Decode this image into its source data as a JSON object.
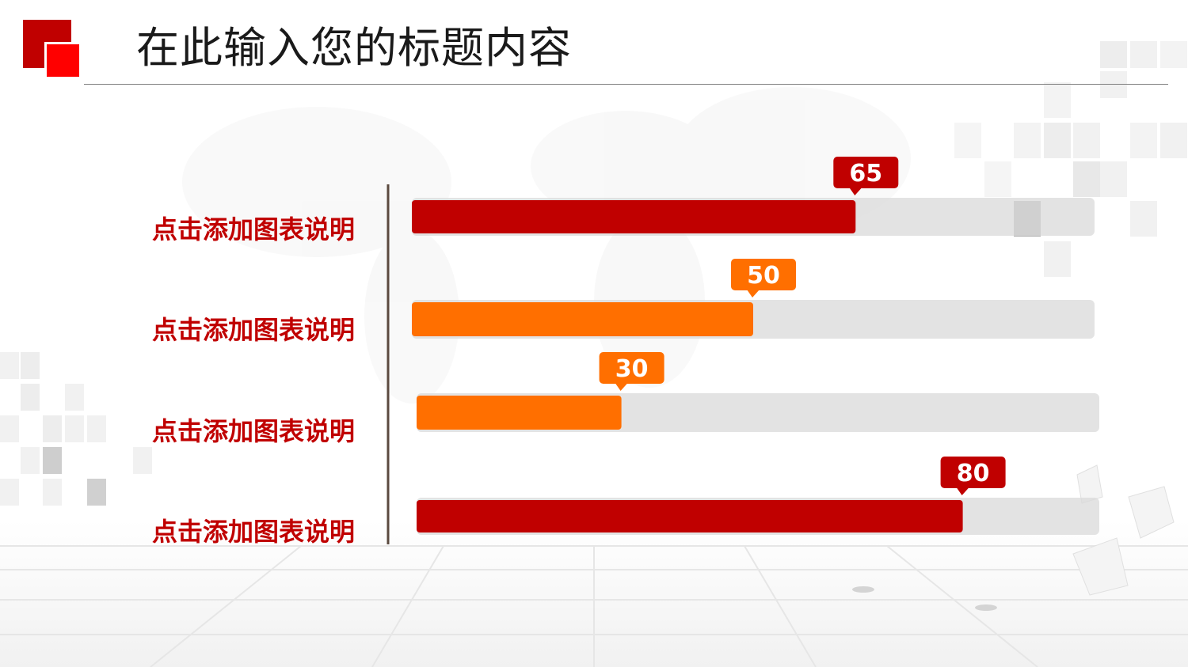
{
  "slide": {
    "title": "在此输入您的标题内容"
  },
  "colors": {
    "red": "#c00000",
    "orange": "#ff6f00",
    "track": "#d9d9d9",
    "label": "#c00000",
    "axis": "#5b4a3f"
  },
  "chart_data": {
    "type": "bar",
    "orientation": "horizontal",
    "categories": [
      "点击添加图表说明",
      "点击添加图表说明",
      "点击添加图表说明",
      "点击添加图表说明"
    ],
    "values": [
      65,
      50,
      30,
      80
    ],
    "value_labels": [
      "65",
      "50",
      "30",
      "80"
    ],
    "bar_colors": [
      "#c00000",
      "#ff6f00",
      "#ff6f00",
      "#c00000"
    ],
    "xlim": [
      0,
      100
    ],
    "grid": false,
    "legend": "none",
    "title": "",
    "xlabel": "",
    "ylabel": ""
  }
}
